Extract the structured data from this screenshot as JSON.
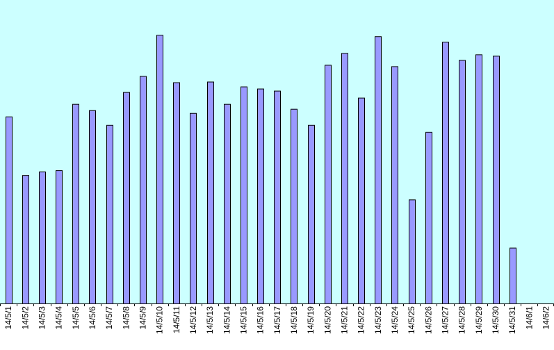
{
  "chart_data": {
    "type": "bar",
    "categories": [
      "14/5/1",
      "14/5/2",
      "14/5/3",
      "14/5/4",
      "14/5/5",
      "14/5/6",
      "14/5/7",
      "14/5/8",
      "14/5/9",
      "14/5/10",
      "14/5/11",
      "14/5/12",
      "14/5/13",
      "14/5/14",
      "14/5/15",
      "14/5/16",
      "14/5/17",
      "14/5/18",
      "14/5/19",
      "14/5/20",
      "14/5/21",
      "14/5/22",
      "14/5/23",
      "14/5/24",
      "14/5/25",
      "14/5/26",
      "14/5/27",
      "14/5/28",
      "14/5/29",
      "14/5/30",
      "14/5/31",
      "14/6/1",
      "14/6/2"
    ],
    "values": [
      268,
      184,
      189,
      191,
      286,
      277,
      256,
      303,
      326,
      385,
      317,
      273,
      318,
      286,
      311,
      308,
      305,
      279,
      256,
      342,
      359,
      295,
      383,
      340,
      149,
      246,
      375,
      349,
      357,
      355,
      80,
      null,
      null
    ],
    "ylim": [
      0,
      435
    ],
    "grid": false,
    "colors": {
      "plot_background": "#ccffff",
      "bar_fill": "#9999ff",
      "bar_stroke": "#000000",
      "axis": "#000000"
    }
  }
}
